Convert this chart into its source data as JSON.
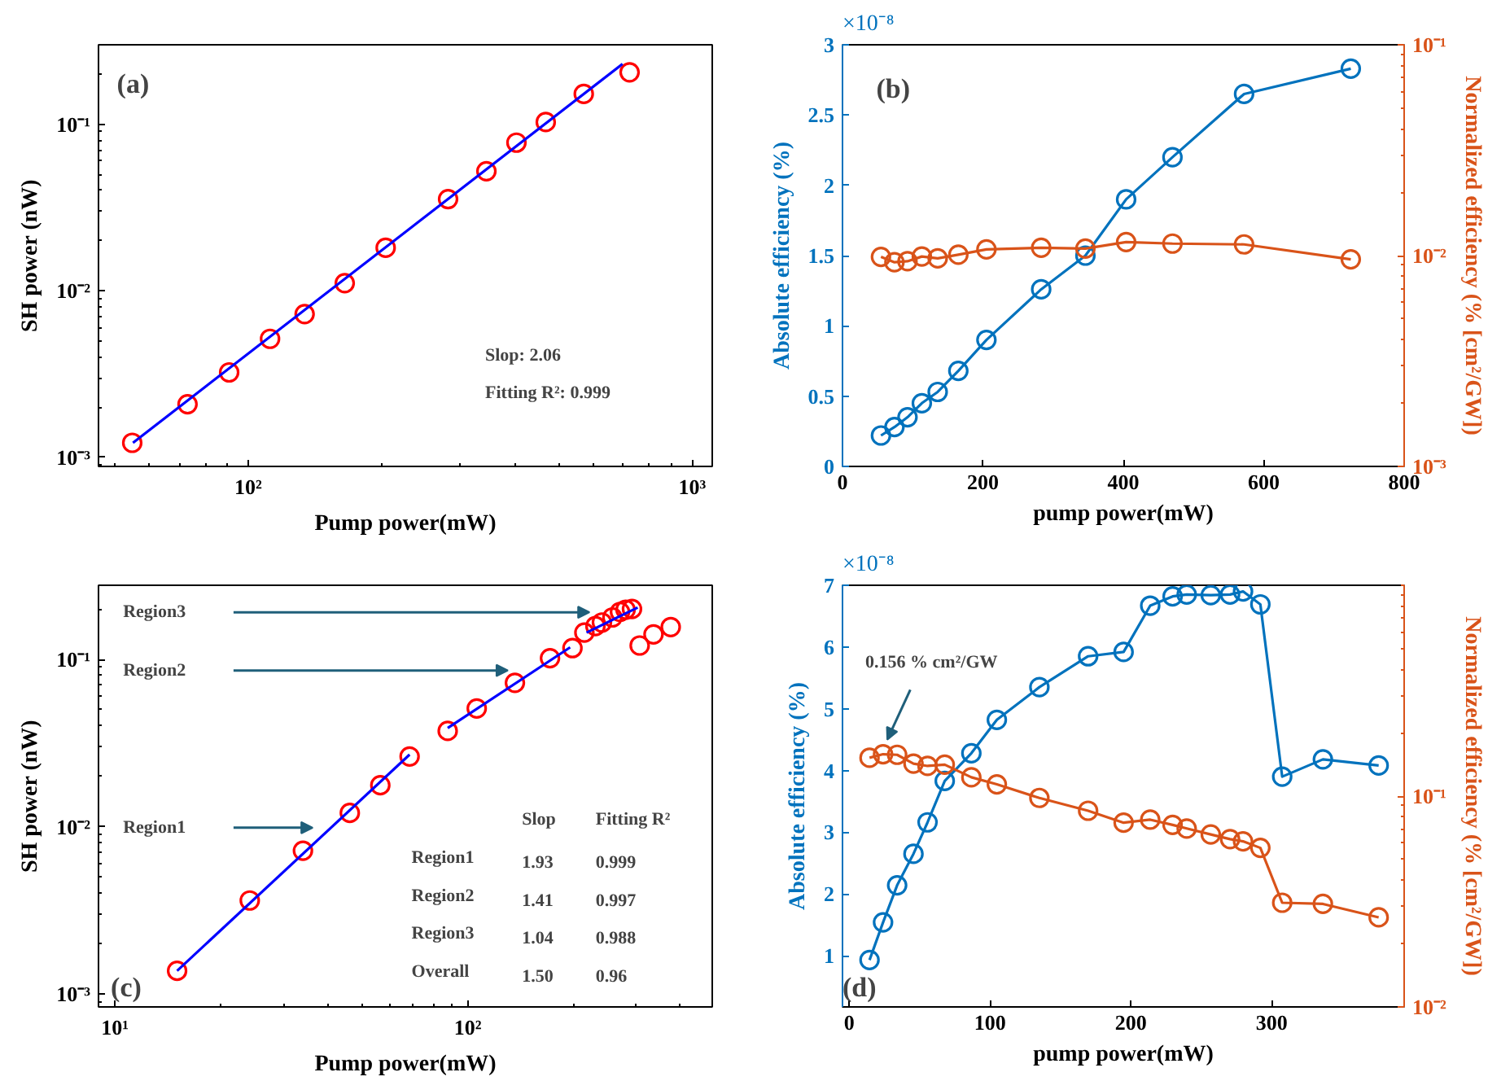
{
  "chart_data": [
    {
      "type": "scatter",
      "title": "(a)",
      "xlabel": "Pump power(mW)",
      "ylabel": "SH power (nW)",
      "log": "xy",
      "xlim": [
        46,
        1110
      ],
      "ylim": [
        0.00088,
        0.3
      ],
      "xticks": [
        {
          "value": 100,
          "label": "10²"
        },
        {
          "value": 1000,
          "label": "10³"
        }
      ],
      "yticks": [
        {
          "value": 0.001,
          "label": "10⁻³"
        },
        {
          "value": 0.01,
          "label": "10⁻²"
        },
        {
          "value": 0.1,
          "label": "10⁻¹"
        }
      ],
      "annotations": [
        "Slop: 2.06",
        "Fitting R²: 0.999"
      ],
      "series": [
        {
          "type": "scatter",
          "color": "#ff0000",
          "marker": "circle",
          "x": [
            54.8,
            73,
            90.6,
            112,
            134,
            165,
            204,
            282,
            344,
            402,
            468,
            570,
            723
          ],
          "values": [
            0.00122,
            0.00208,
            0.00323,
            0.00514,
            0.00724,
            0.0111,
            0.0181,
            0.0355,
            0.0522,
            0.0775,
            0.103,
            0.152,
            0.205
          ]
        },
        {
          "type": "line",
          "color": "#0000ff",
          "x": [
            55,
            697
          ],
          "values": [
            0.00122,
            0.23
          ]
        }
      ]
    },
    {
      "type": "line",
      "title": "(b)",
      "xlabel": "pump power(mW)",
      "ylabel": "Absolute efficiency (%)",
      "y2label": "Normalized efficiency (% [cm²/GW])",
      "marker": "circle",
      "log": "y2",
      "xlim": [
        0,
        800
      ],
      "xticks": [
        0,
        200,
        400,
        600,
        800
      ],
      "ylim": [
        0,
        3
      ],
      "yticks": [
        0,
        0.5,
        1,
        1.5,
        2,
        2.5,
        3
      ],
      "y2lim": [
        0.001,
        0.1
      ],
      "y2ticks": [
        {
          "value": 0.001,
          "label": "10⁻³"
        },
        {
          "value": 0.01,
          "label": "10⁻²"
        },
        {
          "value": 0.1,
          "label": "10⁻¹"
        }
      ],
      "annotations": [
        "×10⁻⁸"
      ],
      "x": [
        54.8,
        74,
        92.6,
        113,
        135.6,
        165,
        205,
        283,
        346,
        404,
        470,
        572,
        724
      ],
      "series": [
        {
          "color": "#0072bd",
          "axis": "y",
          "values": [
            0.22,
            0.28,
            0.35,
            0.45,
            0.53,
            0.68,
            0.9,
            1.26,
            1.5,
            1.9,
            2.2,
            2.65,
            2.83
          ]
        },
        {
          "color": "#d95319",
          "axis": "y2",
          "values": [
            0.00986,
            0.0093,
            0.0094,
            0.0099,
            0.0097,
            0.0101,
            0.0107,
            0.0109,
            0.0108,
            0.0116,
            0.0114,
            0.0113,
            0.0096
          ]
        }
      ]
    },
    {
      "type": "scatter",
      "title": "(c)",
      "xlabel": "Pump power(mW)",
      "ylabel": "SH power (nW)",
      "log": "xy",
      "xlim": [
        8.98,
        493
      ],
      "ylim": [
        0.00084,
        0.277
      ],
      "xticks": [
        {
          "value": 10,
          "label": "10¹"
        },
        {
          "value": 100,
          "label": "10²"
        }
      ],
      "yticks": [
        {
          "value": 0.001,
          "label": "10⁻³"
        },
        {
          "value": 0.01,
          "label": "10⁻²"
        },
        {
          "value": 0.1,
          "label": "10⁻¹"
        }
      ],
      "annotations": [
        "Region3",
        "Region2",
        "Region1",
        "Slop",
        "Fitting R²",
        "Region1",
        "1.93",
        "0.999",
        "Region2",
        "1.41",
        "0.997",
        "Region3",
        "1.04",
        "0.988",
        "Overall",
        "1.50",
        "0.96"
      ],
      "series": [
        {
          "type": "scatter",
          "color": "#ff0000",
          "marker": "circle",
          "x": [
            15,
            24.1,
            34.1,
            46.3,
            56.5,
            68.4,
            87.7,
            106,
            136,
            171,
            198,
            214,
            230,
            240,
            257,
            270,
            280,
            292,
            307,
            336,
            376
          ],
          "values": [
            0.00138,
            0.00363,
            0.0072,
            0.0121,
            0.0177,
            0.0263,
            0.0374,
            0.0509,
            0.0724,
            0.1016,
            0.1167,
            0.1445,
            0.158,
            0.166,
            0.178,
            0.192,
            0.198,
            0.2,
            0.121,
            0.141,
            0.156
          ]
        },
        {
          "type": "line",
          "color": "#0000ff",
          "x": [
            15,
            68.4
          ],
          "values": [
            0.00138,
            0.027
          ]
        },
        {
          "type": "line",
          "color": "#0000ff",
          "x": [
            87.7,
            195
          ],
          "values": [
            0.0389,
            0.118
          ]
        },
        {
          "type": "line",
          "color": "#0000ff",
          "x": [
            217,
            303
          ],
          "values": [
            0.1445,
            0.204
          ]
        }
      ]
    },
    {
      "type": "line",
      "title": "(d)",
      "xlabel": "pump power(mW)",
      "ylabel": "Absolute efficiency (%)",
      "y2label": "Normalized efficiency (% [cm²/GW])",
      "marker": "circle",
      "log": "y2",
      "xlim": [
        -4.8,
        394
      ],
      "xticks": [
        0,
        100,
        200,
        300
      ],
      "ylim": [
        0.17,
        7
      ],
      "yticks": [
        1,
        2,
        3,
        4,
        5,
        6,
        7
      ],
      "y2lim": [
        0.01,
        1
      ],
      "y2ticks": [
        {
          "value": 0.01,
          "label": "10⁻²"
        },
        {
          "value": 0.1,
          "label": "10⁻¹"
        }
      ],
      "annotations": [
        "×10⁻⁸",
        {
          "text": "0.156 % cm²/GW",
          "x": 27,
          "y": 4.5
        }
      ],
      "x": [
        14.4,
        24,
        34,
        45.6,
        55.6,
        67.8,
        86.7,
        104.8,
        135,
        169.6,
        194.8,
        213.7,
        229.6,
        239.6,
        256.7,
        270.4,
        279.6,
        291.9,
        307.4,
        336.3,
        375.9
      ],
      "series": [
        {
          "color": "#0072bd",
          "axis": "y",
          "values": [
            0.93,
            1.54,
            2.14,
            2.65,
            3.16,
            3.83,
            4.28,
            4.82,
            5.35,
            5.85,
            5.92,
            6.67,
            6.82,
            6.85,
            6.84,
            6.85,
            6.9,
            6.69,
            3.9,
            4.18,
            4.08
          ]
        },
        {
          "color": "#d95319",
          "axis": "y2",
          "values": [
            0.152,
            0.158,
            0.157,
            0.1426,
            0.139,
            0.141,
            0.1228,
            0.1137,
            0.098,
            0.0852,
            0.0748,
            0.0773,
            0.073,
            0.0702,
            0.0658,
            0.0625,
            0.061,
            0.0568,
            0.0312,
            0.0308,
            0.0266
          ]
        }
      ]
    }
  ]
}
